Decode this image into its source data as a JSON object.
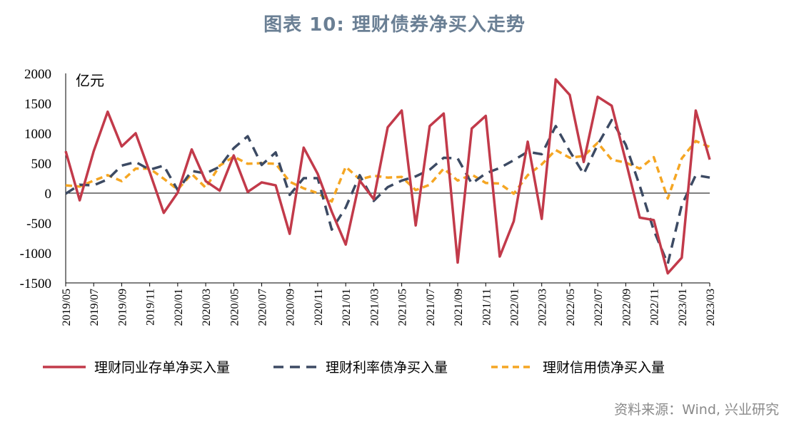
{
  "chart_data": {
    "type": "line",
    "title": "图表 10: 理财债券净买入走势",
    "unit": "亿元",
    "ylim": [
      -1500,
      2000
    ],
    "yticks": [
      2000,
      1500,
      1000,
      500,
      0,
      -500,
      -1000,
      -1500
    ],
    "x_tick_labels": [
      "2019/05",
      "2019/07",
      "2019/09",
      "2019/11",
      "2020/01",
      "2020/03",
      "2020/05",
      "2020/07",
      "2020/09",
      "2020/11",
      "2021/01",
      "2021/03",
      "2021/05",
      "2021/07",
      "2021/09",
      "2021/11",
      "2022/01",
      "2022/03",
      "2022/05",
      "2022/07",
      "2022/09",
      "2022/11",
      "2023/01",
      "2023/03"
    ],
    "x": [
      "2019/05",
      "2019/06",
      "2019/07",
      "2019/08",
      "2019/09",
      "2019/10",
      "2019/11",
      "2019/12",
      "2020/01",
      "2020/02",
      "2020/03",
      "2020/04",
      "2020/05",
      "2020/06",
      "2020/07",
      "2020/08",
      "2020/09",
      "2020/10",
      "2020/11",
      "2020/12",
      "2021/01",
      "2021/02",
      "2021/03",
      "2021/04",
      "2021/05",
      "2021/06",
      "2021/07",
      "2021/08",
      "2021/09",
      "2021/10",
      "2021/11",
      "2021/12",
      "2022/01",
      "2022/02",
      "2022/03",
      "2022/04",
      "2022/05",
      "2022/06",
      "2022/07",
      "2022/08",
      "2022/09",
      "2022/10",
      "2022/11",
      "2022/12",
      "2023/01",
      "2023/02",
      "2023/03"
    ],
    "legend_position": "bottom",
    "series": [
      {
        "name": "理财同业存单净买入量",
        "color": "#c23a4a",
        "style": "solid",
        "values": [
          700,
          -120,
          700,
          1360,
          780,
          1000,
          350,
          -330,
          10,
          730,
          200,
          40,
          630,
          20,
          180,
          130,
          -680,
          760,
          320,
          -310,
          -860,
          210,
          -100,
          1100,
          1380,
          -540,
          1120,
          1330,
          -1160,
          1080,
          1290,
          -1060,
          -470,
          860,
          -430,
          1900,
          1640,
          520,
          1610,
          1460,
          540,
          -410,
          -450,
          -1340,
          -1080,
          1380,
          560
        ]
      },
      {
        "name": "理财利率债净买入量",
        "color": "#3c4a63",
        "style": "dashed",
        "values": [
          -10,
          140,
          130,
          230,
          460,
          520,
          390,
          460,
          50,
          370,
          330,
          440,
          750,
          950,
          470,
          680,
          -30,
          250,
          250,
          -610,
          -240,
          300,
          -130,
          100,
          210,
          280,
          390,
          590,
          580,
          160,
          330,
          420,
          550,
          690,
          650,
          1120,
          700,
          320,
          810,
          1220,
          810,
          120,
          -620,
          -1180,
          -200,
          300,
          260
        ]
      },
      {
        "name": "理财信用债净买入量",
        "color": "#f5a623",
        "style": "dashed",
        "values": [
          130,
          110,
          210,
          300,
          200,
          410,
          410,
          240,
          60,
          320,
          90,
          460,
          610,
          490,
          500,
          490,
          190,
          80,
          0,
          -140,
          440,
          230,
          290,
          260,
          270,
          50,
          140,
          410,
          210,
          310,
          170,
          160,
          -10,
          300,
          480,
          720,
          590,
          620,
          840,
          560,
          510,
          410,
          600,
          -90,
          580,
          870,
          770
        ]
      }
    ]
  },
  "source": "资料来源：Wind, 兴业研究"
}
